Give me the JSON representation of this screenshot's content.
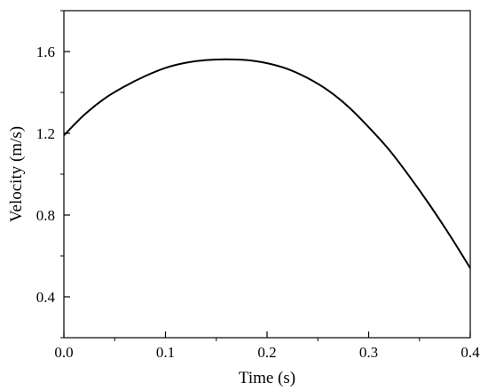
{
  "chart_data": {
    "type": "line",
    "title": "",
    "xlabel": "Time (s)",
    "ylabel": "Velocity (m/s)",
    "xlim": [
      0.0,
      0.4
    ],
    "ylim": [
      0.2,
      1.8
    ],
    "xticks": [
      0.0,
      0.1,
      0.2,
      0.3,
      0.4
    ],
    "xtick_labels": [
      "0.0",
      "0.1",
      "0.2",
      "0.3",
      "0.4"
    ],
    "yticks": [
      0.4,
      0.8,
      1.2,
      1.6
    ],
    "ytick_labels": [
      "0.4",
      "0.8",
      "1.2",
      "1.6"
    ],
    "grid": false,
    "legend": "none",
    "series": [
      {
        "color": "#000000",
        "x": [
          0.0,
          0.02,
          0.04,
          0.06,
          0.08,
          0.1,
          0.12,
          0.14,
          0.16,
          0.18,
          0.2,
          0.22,
          0.24,
          0.26,
          0.28,
          0.3,
          0.32,
          0.34,
          0.36,
          0.38,
          0.4
        ],
        "y": [
          1.19,
          1.29,
          1.37,
          1.43,
          1.48,
          1.52,
          1.545,
          1.558,
          1.562,
          1.558,
          1.543,
          1.515,
          1.47,
          1.41,
          1.33,
          1.23,
          1.12,
          0.99,
          0.85,
          0.7,
          0.54
        ]
      }
    ]
  }
}
